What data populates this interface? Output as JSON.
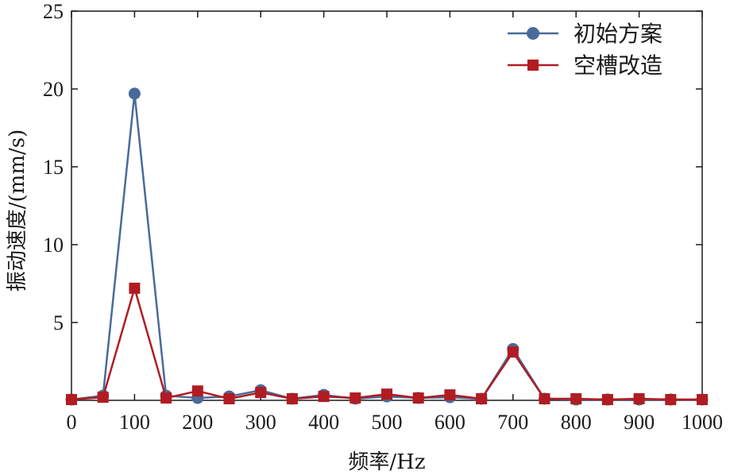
{
  "chart_data": {
    "type": "line",
    "title": "",
    "xlabel": "频率/Hz",
    "ylabel": "振动速度/(mm/s)",
    "xlim": [
      0,
      1000
    ],
    "ylim": [
      0,
      25
    ],
    "xticks": [
      0,
      100,
      200,
      300,
      400,
      500,
      600,
      700,
      800,
      900,
      1000
    ],
    "yticks": [
      5,
      10,
      15,
      20,
      25
    ],
    "grid": false,
    "legend_position": "top-right",
    "series": [
      {
        "name": "初始方案",
        "color": "#4a6a9a",
        "marker": "circle",
        "x": [
          0,
          50,
          100,
          150,
          200,
          250,
          300,
          350,
          400,
          450,
          500,
          550,
          600,
          650,
          700,
          750,
          800,
          850,
          900,
          950,
          1000
        ],
        "y": [
          0.05,
          0.3,
          19.7,
          0.3,
          0.15,
          0.25,
          0.65,
          0.1,
          0.35,
          0.1,
          0.25,
          0.15,
          0.2,
          0.1,
          3.3,
          0.1,
          0.05,
          0.05,
          0.05,
          0.05,
          0.05
        ]
      },
      {
        "name": "空槽改造",
        "color": "#b01c22",
        "marker": "square",
        "x": [
          0,
          50,
          100,
          150,
          200,
          250,
          300,
          350,
          400,
          450,
          500,
          550,
          600,
          650,
          700,
          750,
          800,
          850,
          900,
          950,
          1000
        ],
        "y": [
          0.05,
          0.2,
          7.2,
          0.15,
          0.6,
          0.1,
          0.5,
          0.1,
          0.25,
          0.15,
          0.4,
          0.15,
          0.35,
          0.1,
          3.1,
          0.1,
          0.1,
          0.05,
          0.1,
          0.05,
          0.05
        ]
      }
    ]
  }
}
